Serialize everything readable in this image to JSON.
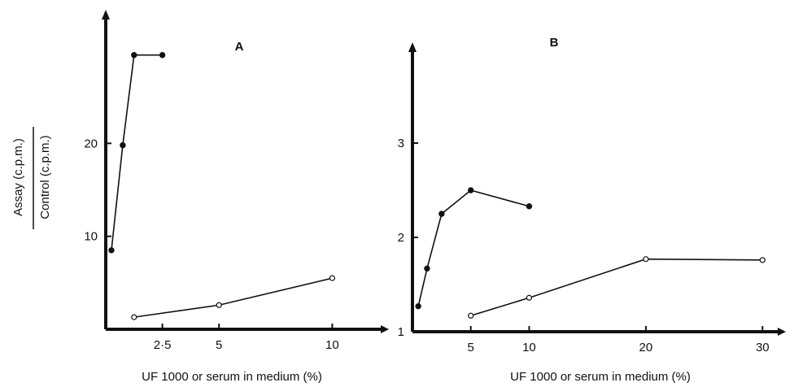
{
  "ylabel_top": "Assay (c.p.m.)",
  "ylabel_bottom": "Control (c.p.m.)",
  "chart_data": [
    {
      "type": "line",
      "panel_label": "A",
      "xlabel": "UF 1000 or serum in medium (%)",
      "xlim": [
        0,
        12.5
      ],
      "ylim": [
        0,
        30
      ],
      "xticks": [
        2.5,
        5,
        10
      ],
      "xtick_labels": [
        "2·5",
        "5",
        "10"
      ],
      "yticks": [
        10,
        20
      ],
      "ytick_labels": [
        "10",
        "20"
      ],
      "series": [
        {
          "style": "filled",
          "x": [
            0.25,
            0.75,
            1.25,
            2.5
          ],
          "y": [
            8.5,
            19.8,
            29.5,
            29.5
          ]
        },
        {
          "style": "open",
          "x": [
            1.25,
            5,
            10
          ],
          "y": [
            1.3,
            2.6,
            5.5
          ]
        }
      ]
    },
    {
      "type": "line",
      "panel_label": "B",
      "xlabel": "UF 1000 or serum in medium (%)",
      "xlim": [
        0,
        32
      ],
      "ylim": [
        1,
        4
      ],
      "xticks": [
        5,
        10,
        20,
        30
      ],
      "xtick_labels": [
        "5",
        "10",
        "20",
        "30"
      ],
      "yticks": [
        1,
        2,
        3
      ],
      "ytick_labels": [
        "1",
        "2",
        "3"
      ],
      "series": [
        {
          "style": "filled",
          "x": [
            0.5,
            1.25,
            2.5,
            5,
            10
          ],
          "y": [
            1.27,
            1.67,
            2.25,
            2.5,
            2.33
          ]
        },
        {
          "style": "open",
          "x": [
            5,
            10,
            20,
            30
          ],
          "y": [
            1.17,
            1.36,
            1.77,
            1.76
          ]
        }
      ]
    }
  ]
}
